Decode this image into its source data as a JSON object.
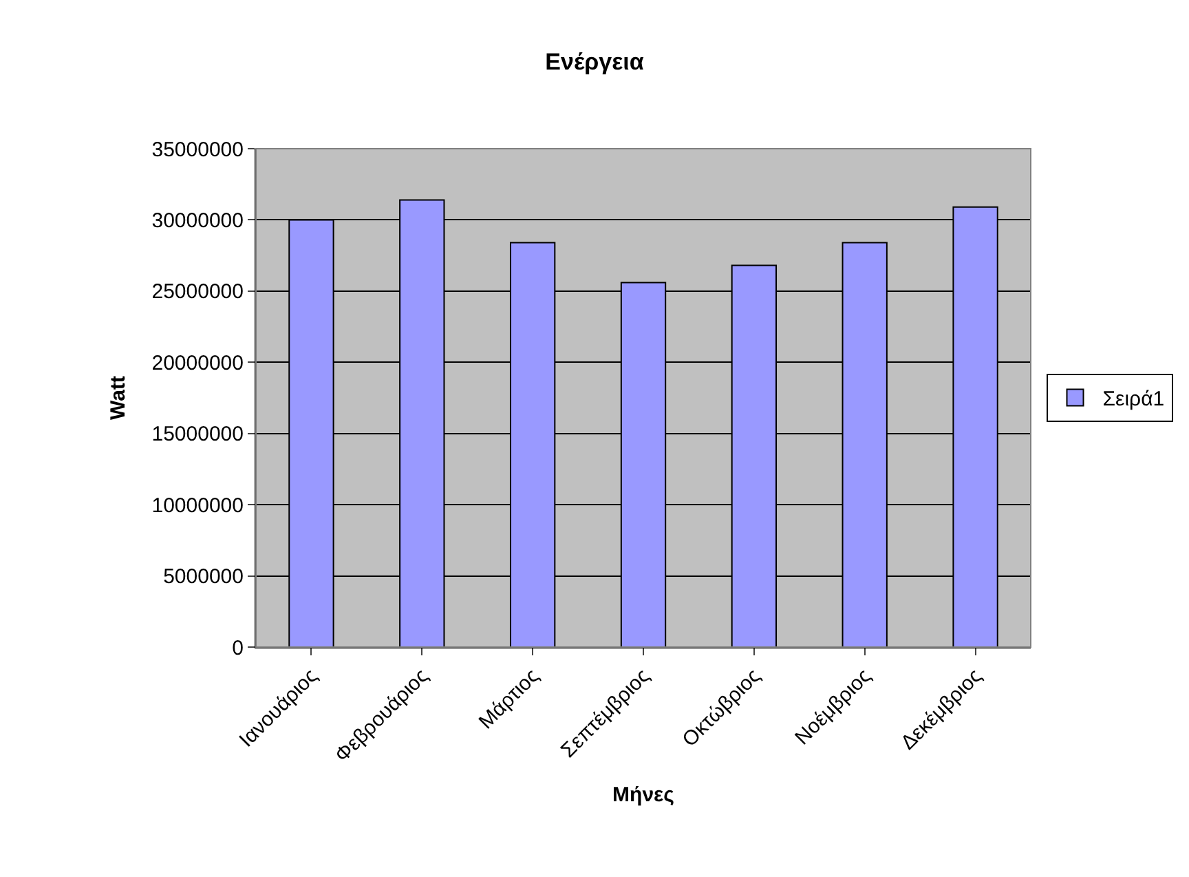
{
  "chart_data": {
    "type": "bar",
    "title": "Ενέργεια",
    "xlabel": "Μήνες",
    "ylabel": "Watt",
    "categories": [
      "Ιανουάριος",
      "Φεβρουάριος",
      "Μάρτιος",
      "Σεπτέμβριος",
      "Οκτώβριος",
      "Νοέμβριος",
      "Δεκέμβριος"
    ],
    "series": [
      {
        "name": "Σειρά1",
        "color": "#9999ff",
        "values": [
          30000000,
          31400000,
          28400000,
          25600000,
          26800000,
          28400000,
          30900000
        ]
      }
    ],
    "ylim": [
      0,
      35000000
    ],
    "yticks": [
      0,
      5000000,
      10000000,
      15000000,
      20000000,
      25000000,
      30000000,
      35000000
    ],
    "grid": "y",
    "legend": "right"
  }
}
